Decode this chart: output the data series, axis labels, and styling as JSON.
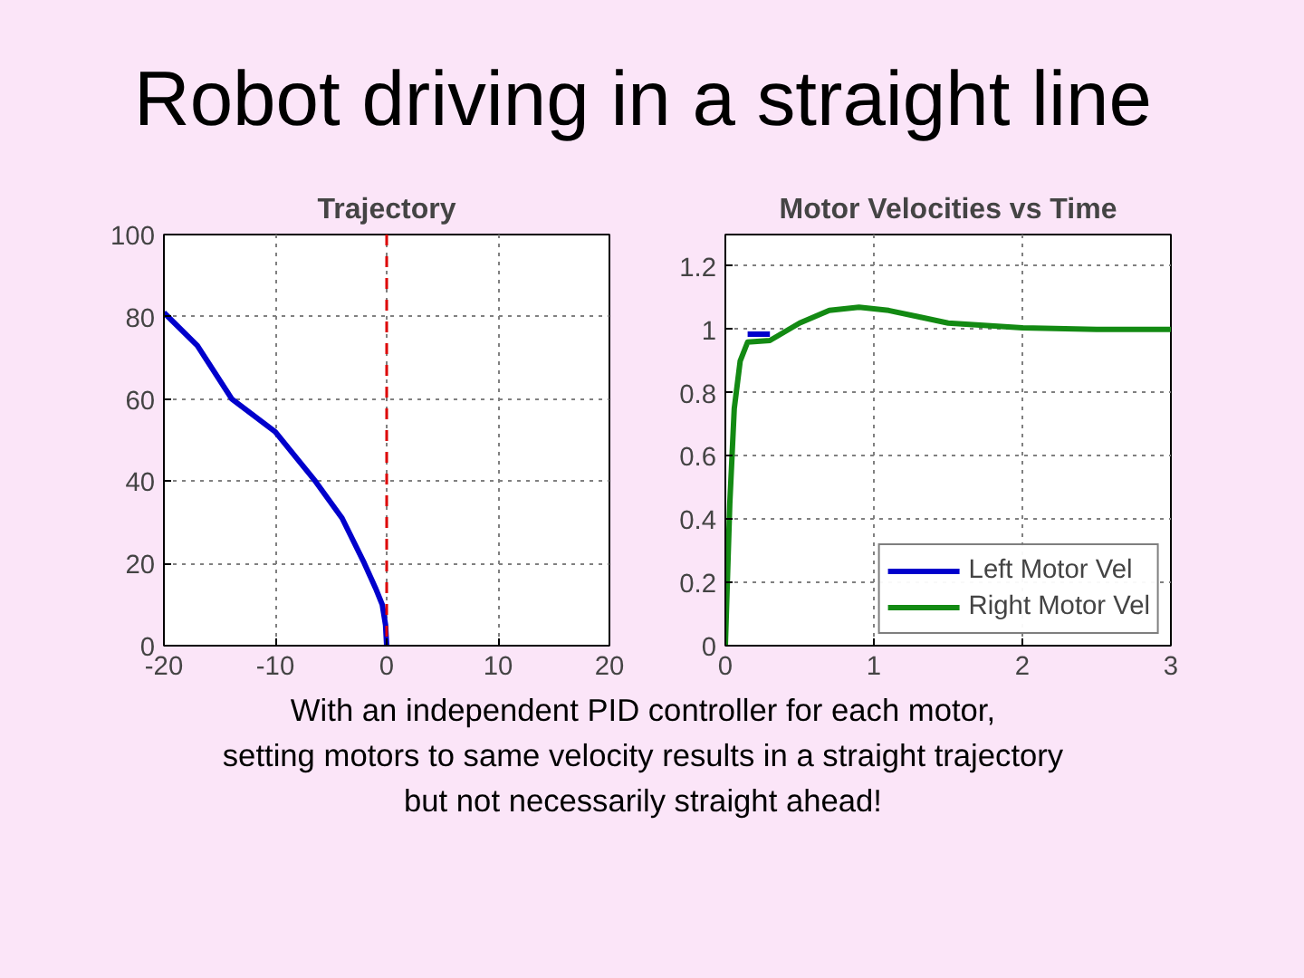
{
  "chart_data": [
    {
      "type": "line",
      "title": "Trajectory",
      "annotations": [
        "Robot driving in a straight line"
      ],
      "x": [
        -20,
        -17,
        -13.9,
        -10,
        -6.4,
        -4,
        -2,
        -1,
        -0.4,
        -0.1,
        0
      ],
      "series": [
        {
          "color": "#0000cc",
          "values": [
            81,
            73,
            60,
            52,
            40,
            31,
            20,
            14,
            10,
            5,
            0
          ]
        }
      ],
      "xlim": [
        -20,
        20
      ],
      "xticks": [
        -20,
        -10,
        0,
        10,
        20
      ],
      "ylim": [
        0,
        100
      ],
      "yticks": [
        0,
        20,
        40,
        60,
        80,
        100
      ],
      "ref_lines": [
        {
          "axis": "x",
          "value": 0,
          "color": "#dd0000",
          "line_style": "dashed"
        }
      ],
      "grid": true,
      "line_style": "solid",
      "legend": false
    },
    {
      "type": "line",
      "title": "Motor Velocities vs Time",
      "annotations": [
        "With an independent PID controller for each motor,",
        "setting motors to same velocity results in a straight trajectory",
        "but not necessarily straight ahead!"
      ],
      "x": [
        0,
        0.03,
        0.06,
        0.1,
        0.15,
        0.3,
        0.5,
        0.7,
        0.9,
        1.1,
        1.3,
        1.5,
        2,
        2.5,
        3
      ],
      "series": [
        {
          "name": "Left Motor Vel",
          "color": "#0000cc",
          "values": [
            null,
            null,
            null,
            null,
            0.985,
            0.985,
            null,
            null,
            null,
            null,
            null,
            null,
            null,
            null,
            null
          ]
        },
        {
          "name": "Right Motor Vel",
          "color": "#138a13",
          "values": [
            0,
            0.45,
            0.75,
            0.9,
            0.96,
            0.965,
            1.02,
            1.06,
            1.07,
            1.06,
            1.04,
            1.02,
            1.005,
            1.0,
            1.0
          ]
        }
      ],
      "xlim": [
        0,
        3
      ],
      "xticks": [
        0,
        1,
        2,
        3
      ],
      "ylim": [
        0,
        1.3
      ],
      "yticks": [
        0,
        0.2,
        0.4,
        0.6,
        0.8,
        1,
        1.2
      ],
      "grid": true,
      "line_style": "solid",
      "legend": "bottom right"
    }
  ]
}
